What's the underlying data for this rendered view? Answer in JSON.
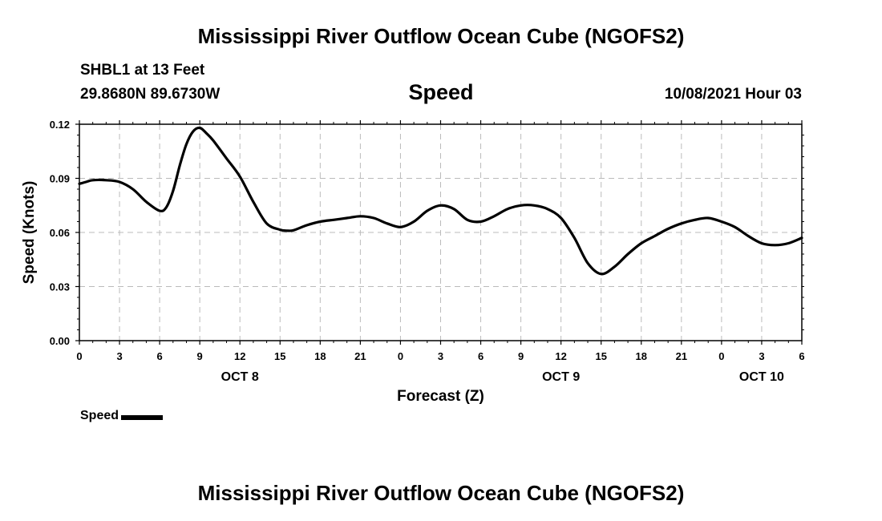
{
  "header": {
    "title": "Mississippi River Outflow Ocean Cube (NGOFS2)",
    "station": "SHBL1 at 13 Feet",
    "coords": "29.8680N  89.6730W",
    "variable": "Speed",
    "datetime": "10/08/2021 Hour 03"
  },
  "footer": {
    "title": "Mississippi River Outflow Ocean Cube (NGOFS2)"
  },
  "legend": {
    "label": "Speed",
    "color": "#000000"
  },
  "chart_data": {
    "type": "line",
    "title": "Speed",
    "xlabel": "Forecast (Z)",
    "ylabel": "Speed (Knots)",
    "xlim": [
      0,
      54
    ],
    "ylim": [
      0.0,
      0.12
    ],
    "y_ticks": [
      "0.00",
      "0.03",
      "0.06",
      "0.09",
      "0.12"
    ],
    "y_tick_values": [
      0.0,
      0.03,
      0.06,
      0.09,
      0.12
    ],
    "x_tick_labels": [
      "0",
      "3",
      "6",
      "9",
      "12",
      "15",
      "18",
      "21",
      "0",
      "3",
      "6",
      "9",
      "12",
      "15",
      "18",
      "21",
      "0",
      "3",
      "6"
    ],
    "date_labels": [
      {
        "label": "OCT 8",
        "hour_index": 12
      },
      {
        "label": "OCT 9",
        "hour_index": 36
      },
      {
        "label": "OCT 10",
        "hour_index": 51
      }
    ],
    "grid": true,
    "series": [
      {
        "name": "Speed",
        "x": [
          0,
          0.5,
          1,
          2,
          3,
          4,
          5,
          6,
          6.5,
          7,
          7.5,
          8,
          8.5,
          9,
          9.5,
          10,
          11,
          12,
          13,
          14,
          15,
          15.5,
          16,
          17,
          18,
          19,
          20,
          21,
          22,
          23,
          24,
          25,
          26,
          27,
          28,
          29,
          30,
          31,
          32,
          33,
          34,
          35,
          36,
          37,
          38,
          39,
          40,
          41,
          42,
          43,
          44,
          45,
          46,
          47,
          48,
          49,
          50,
          51,
          52,
          53,
          54
        ],
        "y": [
          0.087,
          0.088,
          0.089,
          0.089,
          0.088,
          0.084,
          0.077,
          0.072,
          0.074,
          0.083,
          0.097,
          0.109,
          0.116,
          0.118,
          0.115,
          0.111,
          0.101,
          0.091,
          0.077,
          0.065,
          0.0615,
          0.061,
          0.0612,
          0.064,
          0.066,
          0.067,
          0.068,
          0.069,
          0.068,
          0.065,
          0.063,
          0.066,
          0.072,
          0.075,
          0.073,
          0.067,
          0.066,
          0.069,
          0.073,
          0.075,
          0.075,
          0.073,
          0.068,
          0.057,
          0.043,
          0.037,
          0.041,
          0.048,
          0.054,
          0.058,
          0.062,
          0.065,
          0.067,
          0.068,
          0.066,
          0.063,
          0.058,
          0.054,
          0.053,
          0.054,
          0.057
        ]
      }
    ]
  }
}
